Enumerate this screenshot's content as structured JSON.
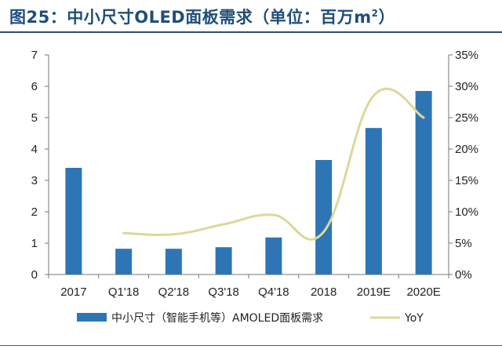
{
  "title": {
    "text": "图25：中小尺寸OLED面板需求（单位：百万m",
    "superscript": "2",
    "close": "）"
  },
  "chart_data": {
    "type": "bar",
    "title": "图25：中小尺寸OLED面板需求（单位：百万m²）",
    "categories": [
      "2017",
      "Q1'18",
      "Q2'18",
      "Q3'18",
      "Q4'18",
      "2018",
      "2019E",
      "2020E"
    ],
    "series": [
      {
        "name": "中小尺寸（智能手机等）AMOLED面板需求",
        "type": "bar",
        "axis": "left",
        "color": "#2e75b6",
        "values": [
          3.4,
          0.82,
          0.82,
          0.87,
          1.18,
          3.65,
          4.67,
          5.85
        ]
      },
      {
        "name": "YoY",
        "type": "line",
        "axis": "right",
        "color": "#dcd89a",
        "values": [
          null,
          0.066,
          0.064,
          0.08,
          0.095,
          0.068,
          0.285,
          0.25
        ]
      }
    ],
    "y_left": {
      "min": 0,
      "max": 7,
      "ticks": [
        "0",
        "1",
        "2",
        "3",
        "4",
        "5",
        "6",
        "7"
      ]
    },
    "y_right": {
      "min": 0,
      "max": 0.35,
      "ticks": [
        "0%",
        "5%",
        "10%",
        "15%",
        "20%",
        "25%",
        "30%",
        "35%"
      ]
    },
    "grid": false,
    "legend_position": "bottom"
  }
}
